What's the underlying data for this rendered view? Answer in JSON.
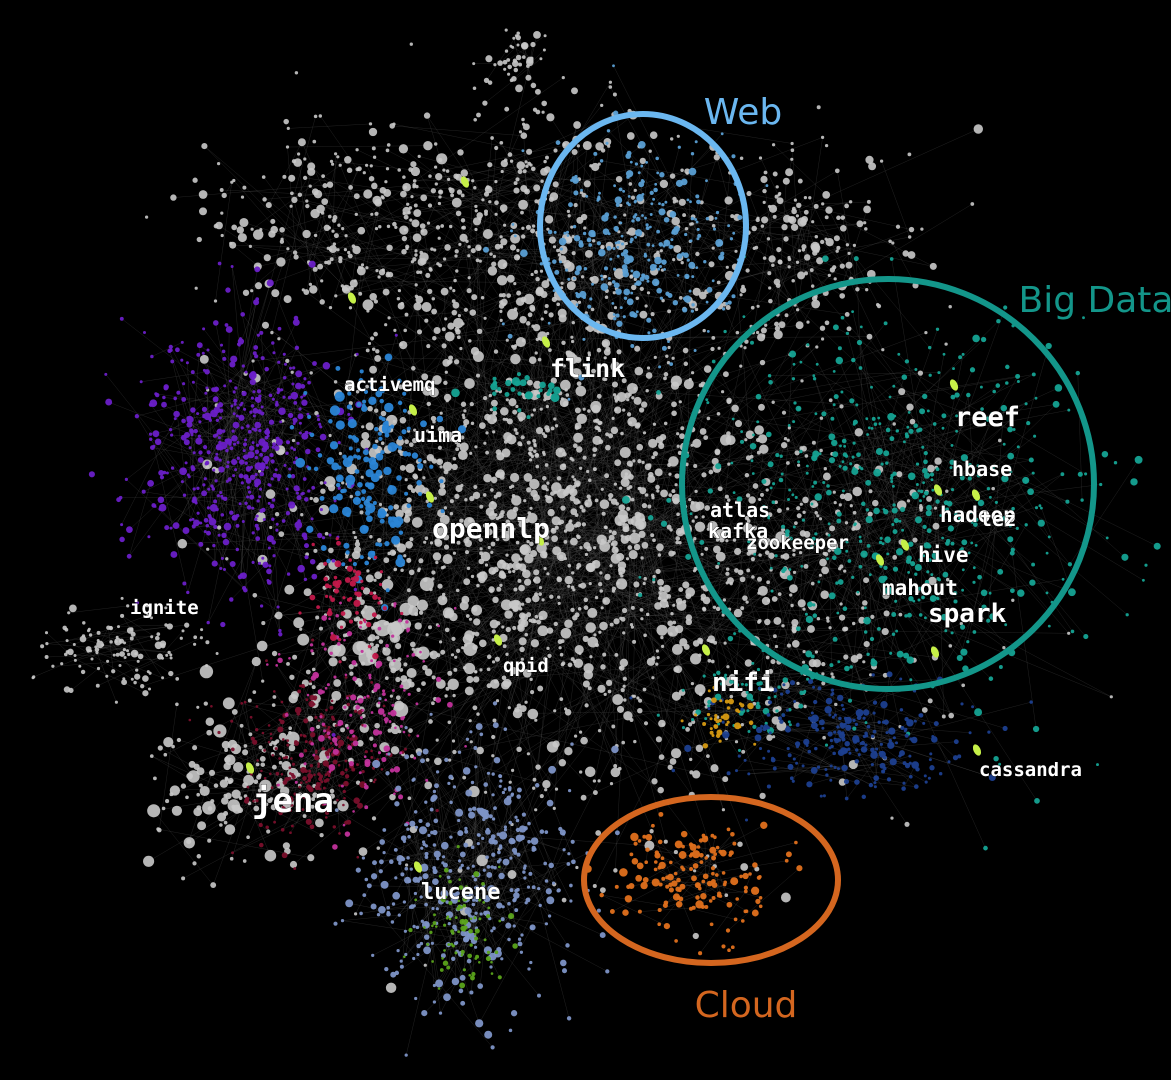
{
  "clusters": [
    {
      "label": "Web",
      "color": "#6bb7f0"
    },
    {
      "label": "Big Data",
      "color": "#13968a"
    },
    {
      "label": "Cloud",
      "color": "#d4661f"
    }
  ],
  "projects": [
    {
      "label": "flink"
    },
    {
      "label": "activemq"
    },
    {
      "label": "uima"
    },
    {
      "label": "opennlp"
    },
    {
      "label": "ignite"
    },
    {
      "label": "qpid"
    },
    {
      "label": "jena"
    },
    {
      "label": "lucene"
    },
    {
      "label": "nifi"
    },
    {
      "label": "cassandra"
    },
    {
      "label": "reef"
    },
    {
      "label": "hbase"
    },
    {
      "label": "atlas"
    },
    {
      "label": "kafka"
    },
    {
      "label": "zookeeper"
    },
    {
      "label": "hadoop"
    },
    {
      "label": "tez"
    },
    {
      "label": "hive"
    },
    {
      "label": "mahout"
    },
    {
      "label": "spark"
    }
  ],
  "palette": {
    "background": "#000000",
    "node_default": "#c9c9c9",
    "purple": "#6a1fc8",
    "blue": "#2a85d6",
    "lightblue": "#5a9fd4",
    "teal": "#15a394",
    "crimson": "#c2184a",
    "maroon": "#7a0f2b",
    "magenta": "#c2329b",
    "steel": "#7d93c6",
    "navy": "#1c3f8f",
    "orange": "#e0701c",
    "gold": "#d69a12",
    "green": "#5aa31a",
    "lime": "#c6f048"
  }
}
